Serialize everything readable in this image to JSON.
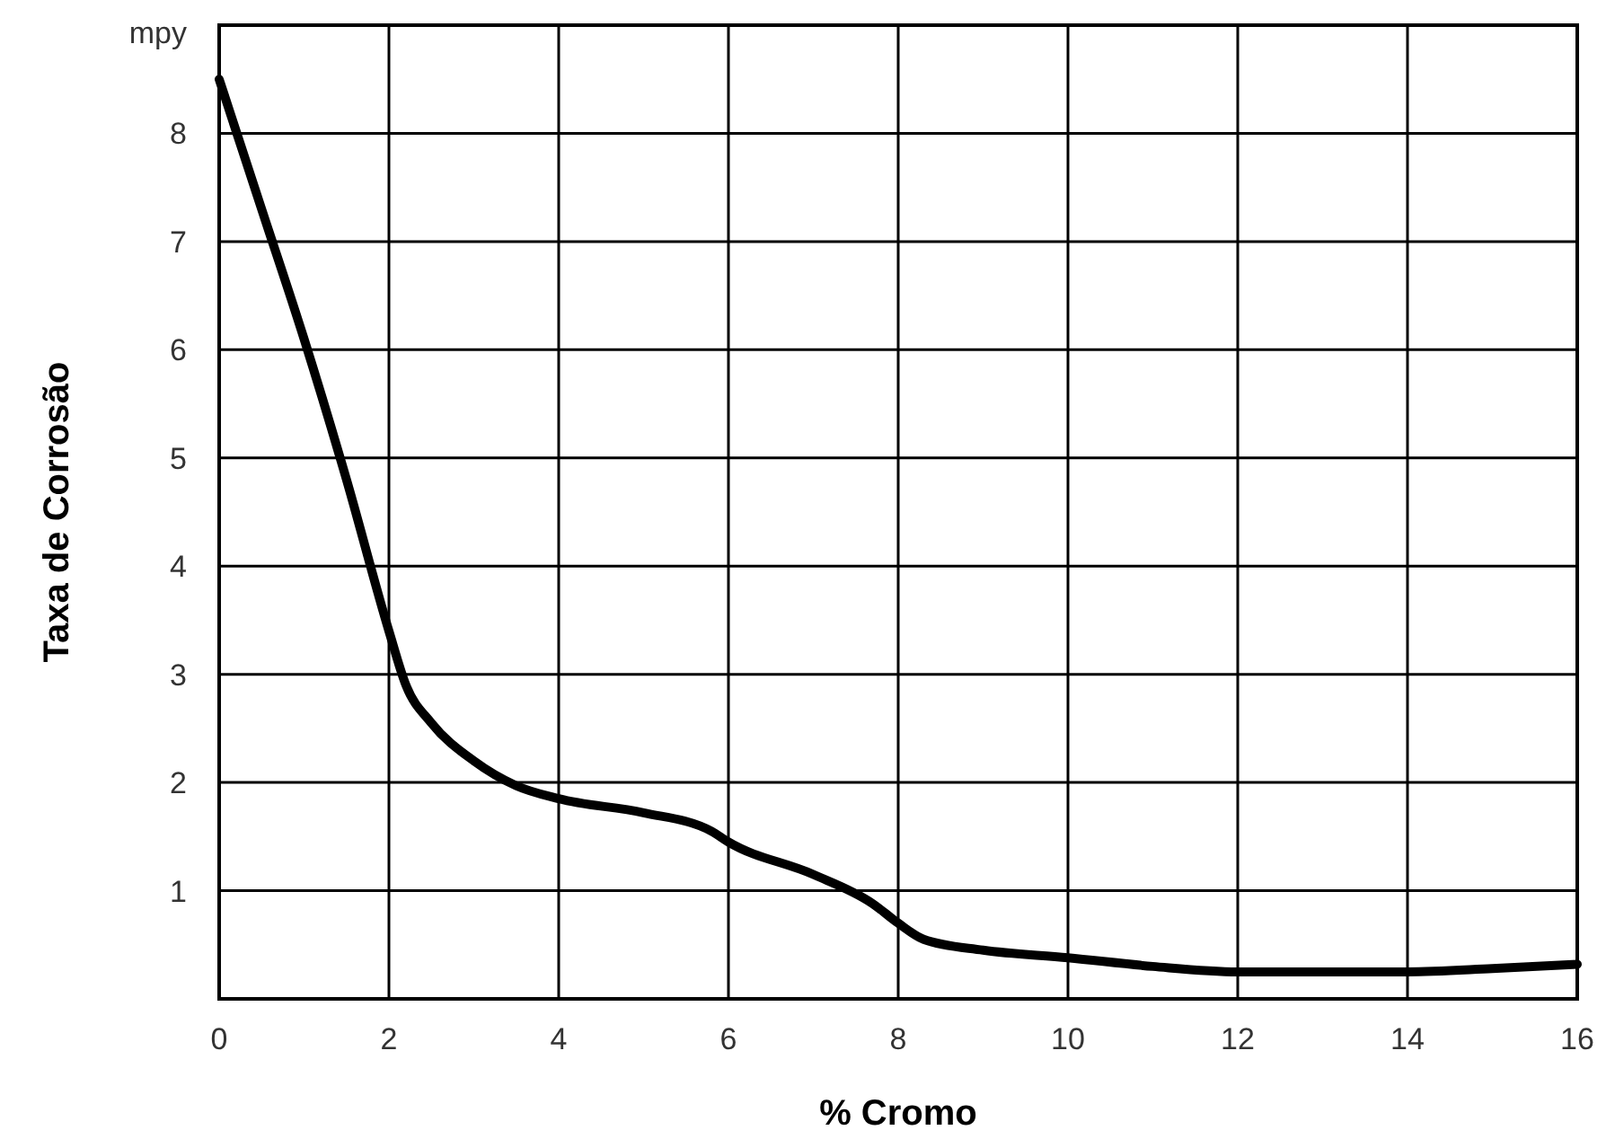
{
  "chart_data": {
    "type": "line",
    "xlabel": "% Cromo",
    "ylabel": "Taxa de Corrosão",
    "xlim": [
      0,
      16
    ],
    "xticks": [
      0,
      2,
      4,
      6,
      8,
      10,
      12,
      14,
      16
    ],
    "ylim": [
      0,
      9
    ],
    "yticks": [
      1,
      2,
      3,
      4,
      5,
      6,
      7,
      8,
      {
        "value": 9,
        "label": "mpy"
      }
    ],
    "grid": true,
    "marker": "none",
    "line_style": "solid",
    "series": [
      {
        "color": "#000000",
        "x": [
          0,
          0.5,
          1,
          1.5,
          2,
          2.2,
          2.5,
          3,
          3.5,
          4,
          5,
          5.8,
          6,
          7,
          7.7,
          8,
          8.3,
          9,
          10,
          11,
          12,
          13,
          14,
          15,
          16
        ],
        "values": [
          8.5,
          7.3,
          6.1,
          4.8,
          3.4,
          2.9,
          2.55,
          2.2,
          1.97,
          1.85,
          1.72,
          1.55,
          1.45,
          1.15,
          0.88,
          0.7,
          0.55,
          0.45,
          0.38,
          0.3,
          0.25,
          0.25,
          0.25,
          0.28,
          0.32
        ]
      }
    ]
  }
}
